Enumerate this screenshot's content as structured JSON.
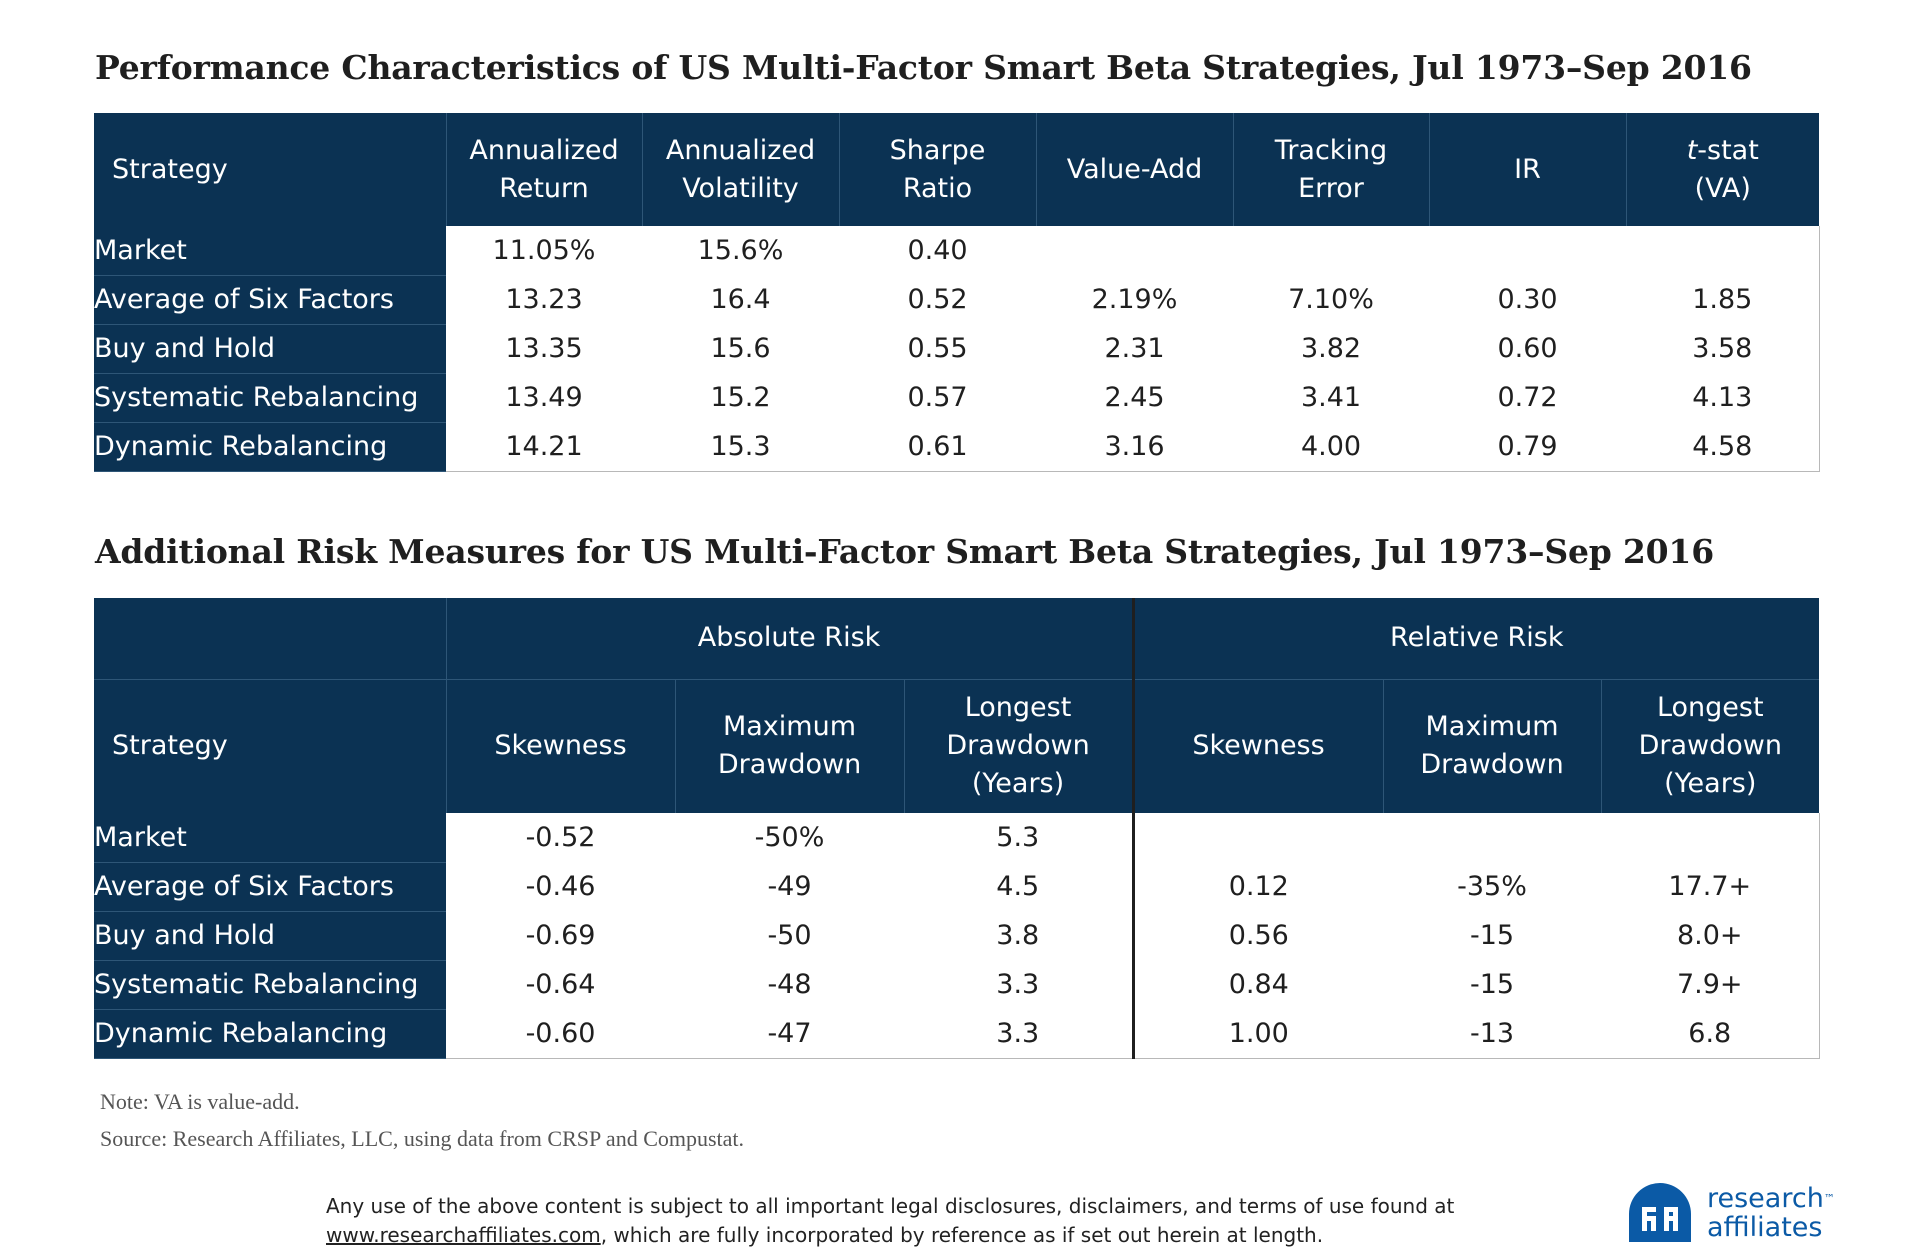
{
  "title1": "Performance Characteristics of US Multi-Factor Smart Beta Strategies, Jul 1973–Sep 2016",
  "title2": "Additional Risk Measures for US Multi-Factor Smart Beta Strategies, Jul 1973–Sep 2016",
  "table1": {
    "headers": {
      "strategy": "Strategy",
      "ann_return": [
        "Annualized",
        "Return"
      ],
      "ann_vol": [
        "Annualized",
        "Volatility"
      ],
      "sharpe": [
        "Sharpe",
        "Ratio"
      ],
      "value_add": "Value-Add",
      "tracking": [
        "Tracking",
        "Error"
      ],
      "ir": "IR",
      "tstat_italic": "t",
      "tstat_rest": "-stat",
      "tstat_line2": "(VA)"
    },
    "rows": [
      {
        "name": "Market",
        "cells": [
          "11.05%",
          "15.6%",
          "0.40",
          "",
          "",
          "",
          ""
        ]
      },
      {
        "name": "Average of Six Factors",
        "cells": [
          "13.23",
          "16.4",
          "0.52",
          "2.19%",
          "7.10%",
          "0.30",
          "1.85"
        ]
      },
      {
        "name": "Buy and Hold",
        "cells": [
          "13.35",
          "15.6",
          "0.55",
          "2.31",
          "3.82",
          "0.60",
          "3.58"
        ]
      },
      {
        "name": "Systematic Rebalancing",
        "cells": [
          "13.49",
          "15.2",
          "0.57",
          "2.45",
          "3.41",
          "0.72",
          "4.13"
        ]
      },
      {
        "name": "Dynamic Rebalancing",
        "cells": [
          "14.21",
          "15.3",
          "0.61",
          "3.16",
          "4.00",
          "0.79",
          "4.58"
        ]
      }
    ]
  },
  "table2": {
    "group_absolute": "Absolute Risk",
    "group_relative": "Relative Risk",
    "headers": {
      "strategy": "Strategy",
      "skewness": "Skewness",
      "max_dd": [
        "Maximum",
        "Drawdown"
      ],
      "longest_dd": [
        "Longest",
        "Drawdown",
        "(Years)"
      ]
    },
    "rows": [
      {
        "name": "Market",
        "cells": [
          "-0.52",
          "-50%",
          "5.3",
          "",
          "",
          ""
        ]
      },
      {
        "name": "Average of Six Factors",
        "cells": [
          "-0.46",
          "-49",
          "4.5",
          "0.12",
          "-35%",
          "17.7+"
        ]
      },
      {
        "name": "Buy and Hold",
        "cells": [
          "-0.69",
          "-50",
          "3.8",
          "0.56",
          "-15",
          "8.0+"
        ]
      },
      {
        "name": "Systematic Rebalancing",
        "cells": [
          "-0.64",
          "-48",
          "3.3",
          "0.84",
          "-15",
          "7.9+"
        ]
      },
      {
        "name": "Dynamic Rebalancing",
        "cells": [
          "-0.60",
          "-47",
          "3.3",
          "1.00",
          "-13",
          "6.8"
        ]
      }
    ]
  },
  "notes": {
    "note": "Note: VA is value-add.",
    "source": "Source: Research Affiliates, LLC, using data from CRSP and Compustat."
  },
  "footer": {
    "line1": "Any use of the above content is subject to all important legal disclosures, disclaimers, and terms of use found at",
    "link": "www.researchaffiliates.com",
    "line2_rest": ", which are fully incorporated by reference as if set out herein at length."
  },
  "logo": {
    "line1": "research",
    "tm": "™",
    "line2": "affiliates"
  },
  "colors": {
    "header_bg": "#0b3253",
    "brand": "#0b5aa6"
  }
}
